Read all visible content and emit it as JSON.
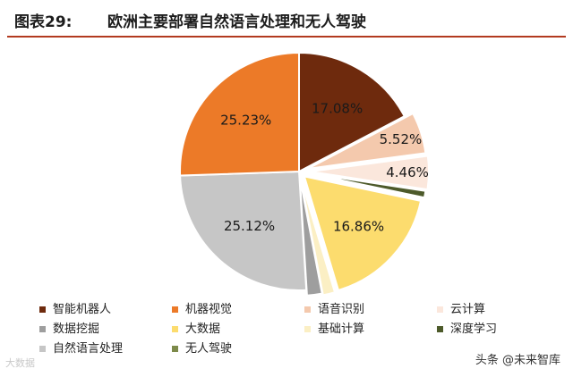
{
  "title": {
    "label": "图表29:",
    "text": "欧洲主要部署自然语言处理和无人驾驶"
  },
  "chart_data": {
    "type": "pie",
    "slices": [
      {
        "name": "智能机器人",
        "value": 17.08,
        "label": "17.08%",
        "color": "#6e2a0d"
      },
      {
        "name": "语音识别",
        "value": 5.52,
        "label": "5.52%",
        "color": "#f4c9ad"
      },
      {
        "name": "云计算",
        "value": 4.46,
        "label": "4.46%",
        "color": "#fbe7dc"
      },
      {
        "name": "深度学习",
        "value": 0.9,
        "label": "",
        "color": "#4d5a2a"
      },
      {
        "name": "大数据",
        "value": 16.86,
        "label": "16.86%",
        "color": "#fcdc6e"
      },
      {
        "name": "基础计算",
        "value": 1.6,
        "label": "",
        "color": "#fbefc4"
      },
      {
        "name": "数据挖掘",
        "value": 2.0,
        "label": "",
        "color": "#9e9e9e"
      },
      {
        "name": "自然语言处理",
        "value": 25.12,
        "label": "25.12%",
        "color": "#c6c6c6"
      },
      {
        "name": "机器视觉",
        "value": 25.23,
        "label": "25.23%",
        "color": "#ec7a28"
      }
    ],
    "legend": [
      {
        "name": "智能机器人",
        "color": "#6e2a0d"
      },
      {
        "name": "机器视觉",
        "color": "#ec7a28"
      },
      {
        "name": "语音识别",
        "color": "#f4c9ad"
      },
      {
        "name": "云计算",
        "color": "#fbe7dc"
      },
      {
        "name": "数据挖掘",
        "color": "#9e9e9e"
      },
      {
        "name": "大数据",
        "color": "#fcdc6e"
      },
      {
        "name": "基础计算",
        "color": "#fbefc4"
      },
      {
        "name": "深度学习",
        "color": "#4d5a2a"
      },
      {
        "name": "自然语言处理",
        "color": "#c6c6c6"
      },
      {
        "name": "无人驾驶",
        "color": "#7d8a4a"
      }
    ],
    "legend_placement": "bottom"
  },
  "watermarks": {
    "left": "大数据",
    "right": "头条 @未来智库"
  },
  "colors": {
    "title_rule": "#b23a1f"
  }
}
